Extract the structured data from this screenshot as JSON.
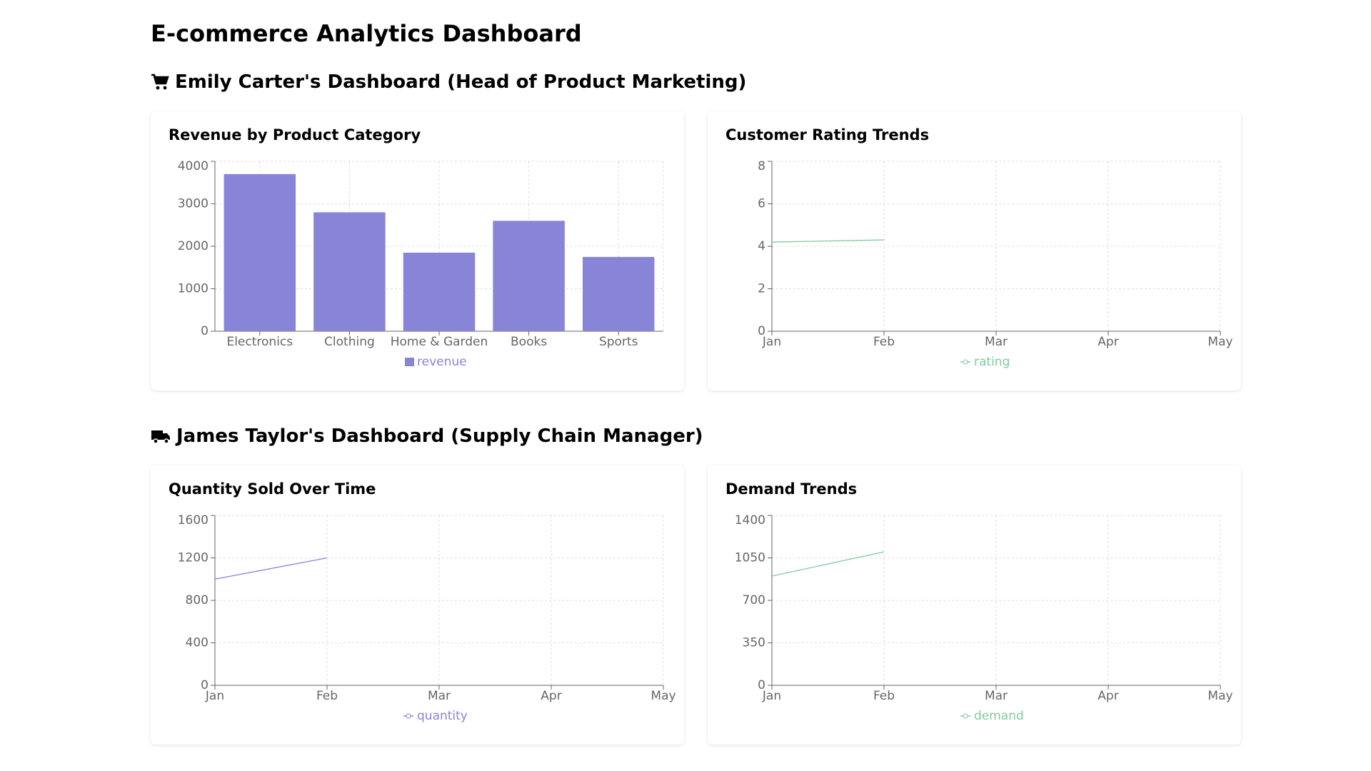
{
  "title": "E-commerce Analytics Dashboard",
  "sections": [
    {
      "heading": "Emily Carter's Dashboard (Head of Product Marketing)"
    },
    {
      "heading": "James Taylor's Dashboard (Supply Chain Manager)"
    }
  ],
  "chart_data": [
    {
      "type": "bar",
      "title": "Revenue by Product Category",
      "categories": [
        "Electronics",
        "Clothing",
        "Home & Garden",
        "Books",
        "Sports"
      ],
      "series": [
        {
          "name": "revenue",
          "color": "#8884d8",
          "values": [
            3700,
            2800,
            1850,
            2600,
            1750
          ]
        }
      ],
      "ylim": [
        0,
        4000
      ],
      "yticks": [
        0,
        1000,
        2000,
        3000,
        4000
      ],
      "grid": true
    },
    {
      "type": "line",
      "title": "Customer Rating Trends",
      "categories": [
        "Jan",
        "Feb",
        "Mar",
        "Apr",
        "May"
      ],
      "series": [
        {
          "name": "rating",
          "color": "#82ca9d",
          "values": [
            4.2,
            4.3,
            null,
            null,
            null
          ]
        }
      ],
      "ylim": [
        0,
        8
      ],
      "yticks": [
        0,
        2,
        4,
        6,
        8
      ],
      "grid": true
    },
    {
      "type": "line",
      "title": "Quantity Sold Over Time",
      "categories": [
        "Jan",
        "Feb",
        "Mar",
        "Apr",
        "May"
      ],
      "series": [
        {
          "name": "quantity",
          "color": "#8884d8",
          "values": [
            1000,
            1200,
            null,
            null,
            null
          ]
        }
      ],
      "ylim": [
        0,
        1600
      ],
      "yticks": [
        0,
        400,
        800,
        1200,
        1600
      ],
      "grid": true
    },
    {
      "type": "line",
      "title": "Demand Trends",
      "categories": [
        "Jan",
        "Feb",
        "Mar",
        "Apr",
        "May"
      ],
      "series": [
        {
          "name": "demand",
          "color": "#82ca9d",
          "values": [
            900,
            1100,
            null,
            null,
            null
          ]
        }
      ],
      "ylim": [
        0,
        1400
      ],
      "yticks": [
        0,
        350,
        700,
        1050,
        1400
      ],
      "grid": true
    }
  ]
}
